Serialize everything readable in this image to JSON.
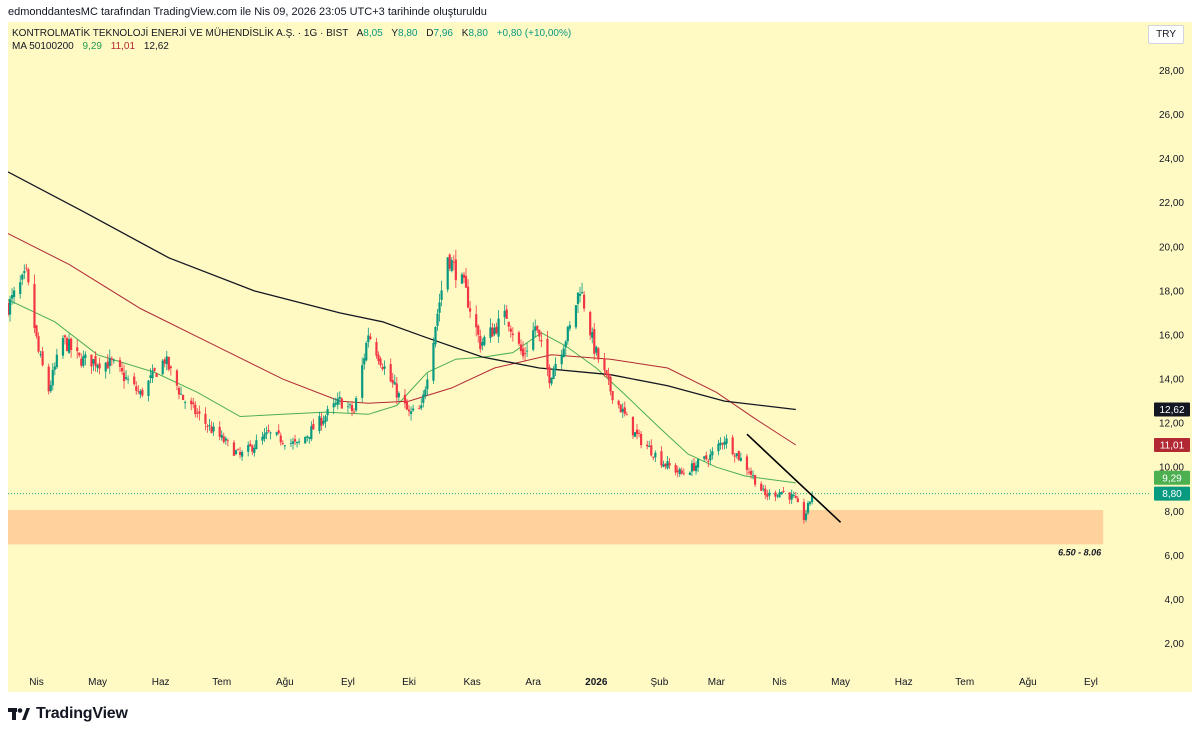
{
  "attribution": "edmonddantesMC tarafından TradingView.com ile Nis 09, 2026 23:05 UTC+3 tarihinde oluşturuldu",
  "legend": {
    "symbol": "KONTROLMATİK TEKNOLOJİ ENERJİ VE MÜHENDİSLİK A.Ş. · 1G · BIST",
    "ohlc": [
      {
        "label": "A",
        "value": "8,05"
      },
      {
        "label": "Y",
        "value": "8,80"
      },
      {
        "label": "D",
        "value": "7,96"
      },
      {
        "label": "K",
        "value": "8,80"
      }
    ],
    "change": "+0,80 (+10,00%)",
    "ma_label": "MA 50100200",
    "ma_values": [
      "9,29",
      "11,01",
      "12,62"
    ]
  },
  "currency_button": "TRY",
  "footer": {
    "brand": "TradingView"
  },
  "colors": {
    "background": "#fff9c4",
    "up": "#089981",
    "down": "#f23645",
    "ma50": "#4caf50",
    "ma100": "#b22833",
    "ma200": "#131722",
    "zone": "#ffcc99",
    "trendline": "#000000"
  },
  "chart_data": {
    "type": "candlestick",
    "y_axis": {
      "min": 0.8,
      "max": 30.2,
      "ticks": [
        "2,00",
        "4,00",
        "6,00",
        "8,00",
        "10,00",
        "12,00",
        "14,00",
        "16,00",
        "18,00",
        "20,00",
        "22,00",
        "24,00",
        "26,00",
        "28,00"
      ],
      "tick_values": [
        2,
        4,
        6,
        8,
        10,
        12,
        14,
        16,
        18,
        20,
        22,
        24,
        26,
        28
      ]
    },
    "x_axis": {
      "labels": [
        "Nis",
        "May",
        "Haz",
        "Tem",
        "Ağu",
        "Eyl",
        "Eki",
        "Kas",
        "Ara",
        "2026",
        "Şub",
        "Mar",
        "Nis",
        "May",
        "Haz",
        "Tem",
        "Ağu",
        "Eyl"
      ],
      "label_months": [
        "2025-04",
        "2025-05",
        "2025-06",
        "2025-07",
        "2025-08",
        "2025-09",
        "2025-10",
        "2025-11",
        "2025-12",
        "2026-01",
        "2026-02",
        "2026-03",
        "2026-04",
        "2026-05",
        "2026-06",
        "2026-07",
        "2026-08",
        "2026-09"
      ],
      "start": "2025-03-18",
      "end": "2026-09-30"
    },
    "series": [
      {
        "name": "MA 50",
        "value_label": "9,29",
        "points": [
          [
            "2025-03-18",
            17.6
          ],
          [
            "2025-04-10",
            16.6
          ],
          [
            "2025-05-01",
            15.1
          ],
          [
            "2025-05-29",
            14.3
          ],
          [
            "2025-06-19",
            13.4
          ],
          [
            "2025-07-10",
            12.3
          ],
          [
            "2025-07-31",
            12.4
          ],
          [
            "2025-08-21",
            12.5
          ],
          [
            "2025-09-11",
            12.4
          ],
          [
            "2025-09-25",
            12.8
          ],
          [
            "2025-10-10",
            14.3
          ],
          [
            "2025-10-24",
            14.9
          ],
          [
            "2025-11-07",
            15.0
          ],
          [
            "2025-11-21",
            15.2
          ],
          [
            "2025-12-05",
            16.1
          ],
          [
            "2025-12-17",
            15.5
          ],
          [
            "2026-01-01",
            14.5
          ],
          [
            "2026-01-15",
            13.3
          ],
          [
            "2026-02-01",
            11.8
          ],
          [
            "2026-02-15",
            10.6
          ],
          [
            "2026-03-01",
            10.0
          ],
          [
            "2026-03-15",
            9.6
          ],
          [
            "2026-04-09",
            9.29
          ]
        ]
      },
      {
        "name": "MA 100",
        "value_label": "11,01",
        "points": [
          [
            "2025-03-18",
            20.6
          ],
          [
            "2025-04-17",
            19.2
          ],
          [
            "2025-05-22",
            17.2
          ],
          [
            "2025-06-26",
            15.6
          ],
          [
            "2025-07-31",
            14.0
          ],
          [
            "2025-08-28",
            13.0
          ],
          [
            "2025-09-11",
            12.9
          ],
          [
            "2025-10-01",
            13.0
          ],
          [
            "2025-10-22",
            13.6
          ],
          [
            "2025-11-12",
            14.5
          ],
          [
            "2025-12-10",
            15.1
          ],
          [
            "2026-01-08",
            14.9
          ],
          [
            "2026-02-05",
            14.5
          ],
          [
            "2026-03-01",
            13.4
          ],
          [
            "2026-03-20",
            12.2
          ],
          [
            "2026-04-09",
            11.01
          ]
        ]
      },
      {
        "name": "MA 200",
        "value_label": "12,62",
        "points": [
          [
            "2025-03-18",
            23.4
          ],
          [
            "2025-04-24",
            21.6
          ],
          [
            "2025-06-05",
            19.5
          ],
          [
            "2025-07-17",
            18.0
          ],
          [
            "2025-08-28",
            17.0
          ],
          [
            "2025-09-18",
            16.6
          ],
          [
            "2025-10-09",
            15.9
          ],
          [
            "2025-11-06",
            15.0
          ],
          [
            "2025-12-04",
            14.5
          ],
          [
            "2026-01-08",
            14.2
          ],
          [
            "2026-02-05",
            13.7
          ],
          [
            "2026-03-05",
            13.0
          ],
          [
            "2026-04-09",
            12.62
          ]
        ]
      }
    ],
    "price": {
      "last": "8,80",
      "anchors": [
        [
          "2025-03-18",
          17.3
        ],
        [
          "2025-03-27",
          18.7
        ],
        [
          "2025-04-02",
          15.2
        ],
        [
          "2025-04-07",
          13.5
        ],
        [
          "2025-04-14",
          15.8
        ],
        [
          "2025-04-22",
          14.9
        ],
        [
          "2025-05-08",
          14.7
        ],
        [
          "2025-05-22",
          13.3
        ],
        [
          "2025-06-03",
          14.9
        ],
        [
          "2025-06-12",
          13.1
        ],
        [
          "2025-06-25",
          11.8
        ],
        [
          "2025-07-10",
          10.5
        ],
        [
          "2025-07-24",
          11.5
        ],
        [
          "2025-08-07",
          11.0
        ],
        [
          "2025-08-28",
          13.0
        ],
        [
          "2025-09-04",
          12.5
        ],
        [
          "2025-09-11",
          16.1
        ],
        [
          "2025-09-22",
          13.9
        ],
        [
          "2025-10-01",
          12.4
        ],
        [
          "2025-10-07",
          12.6
        ],
        [
          "2025-10-14",
          16.5
        ],
        [
          "2025-10-20",
          19.6
        ],
        [
          "2025-10-28",
          18.2
        ],
        [
          "2025-11-05",
          15.6
        ],
        [
          "2025-11-18",
          16.9
        ],
        [
          "2025-11-26",
          15.0
        ],
        [
          "2025-12-02",
          16.4
        ],
        [
          "2025-12-09",
          14.1
        ],
        [
          "2025-12-19",
          16.3
        ],
        [
          "2025-12-24",
          18.2
        ],
        [
          "2025-12-31",
          15.4
        ],
        [
          "2026-01-08",
          13.5
        ],
        [
          "2026-01-20",
          11.5
        ],
        [
          "2026-02-03",
          10.2
        ],
        [
          "2026-02-12",
          9.7
        ],
        [
          "2026-02-26",
          10.5
        ],
        [
          "2026-03-05",
          11.3
        ],
        [
          "2026-03-16",
          10.0
        ],
        [
          "2026-03-25",
          8.7
        ],
        [
          "2026-04-02",
          8.9
        ],
        [
          "2026-04-08",
          8.6
        ],
        [
          "2026-04-13",
          7.7
        ],
        [
          "2026-04-15",
          8.2
        ],
        [
          "2026-04-17",
          8.8
        ]
      ]
    },
    "zone": {
      "from": "2025-03-18",
      "to": "2026-09-07",
      "low": 6.5,
      "high": 8.06,
      "label": "6.50 - 8.06"
    },
    "trendline": {
      "from": [
        "2026-03-16",
        11.5
      ],
      "to": [
        "2026-05-01",
        7.5
      ]
    },
    "last_price_line": 8.8,
    "grid": false,
    "legend_position": "top-left"
  }
}
